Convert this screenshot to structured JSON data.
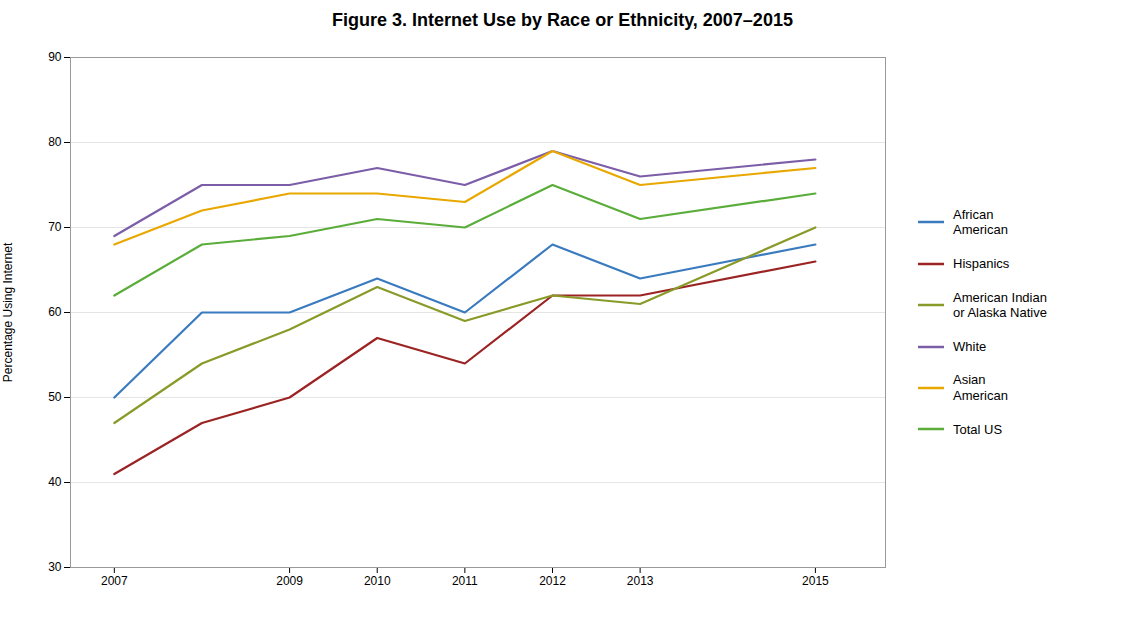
{
  "chart_data": {
    "type": "line",
    "title": "Figure 3. Internet Use by Race or Ethnicity, 2007–2015",
    "ylabel": "Percentage Using Internet",
    "x": [
      2007,
      2008,
      2009,
      2010,
      2011,
      2012,
      2013,
      2015
    ],
    "series": [
      {
        "name": "African\nAmerican",
        "color": "#3a7bbf",
        "values": [
          50,
          60,
          60,
          64,
          60,
          68,
          64,
          68
        ]
      },
      {
        "name": "Hispanics",
        "color": "#9b2323",
        "values": [
          41,
          47,
          50,
          57,
          54,
          62,
          62,
          66
        ]
      },
      {
        "name": "American Indian\nor Alaska Native",
        "color": "#8a9a28",
        "values": [
          47,
          54,
          58,
          63,
          59,
          62,
          61,
          70
        ]
      },
      {
        "name": "White",
        "color": "#7b5ea7",
        "values": [
          69,
          75,
          75,
          77,
          75,
          79,
          76,
          78
        ]
      },
      {
        "name": "Asian\nAmerican",
        "color": "#e8a800",
        "values": [
          68,
          72,
          74,
          74,
          73,
          79,
          75,
          77
        ]
      },
      {
        "name": "Total US",
        "color": "#5aad3a",
        "values": [
          62,
          68,
          69,
          71,
          70,
          75,
          71,
          74
        ]
      }
    ],
    "xlim": [
      2006.5,
      2015.8
    ],
    "xticks": [
      2007,
      2009,
      2010,
      2011,
      2012,
      2013,
      2015
    ],
    "ylim": [
      30,
      90
    ],
    "yticks": [
      30,
      40,
      50,
      60,
      70,
      80,
      90
    ],
    "grid": "y",
    "legend": "right"
  }
}
